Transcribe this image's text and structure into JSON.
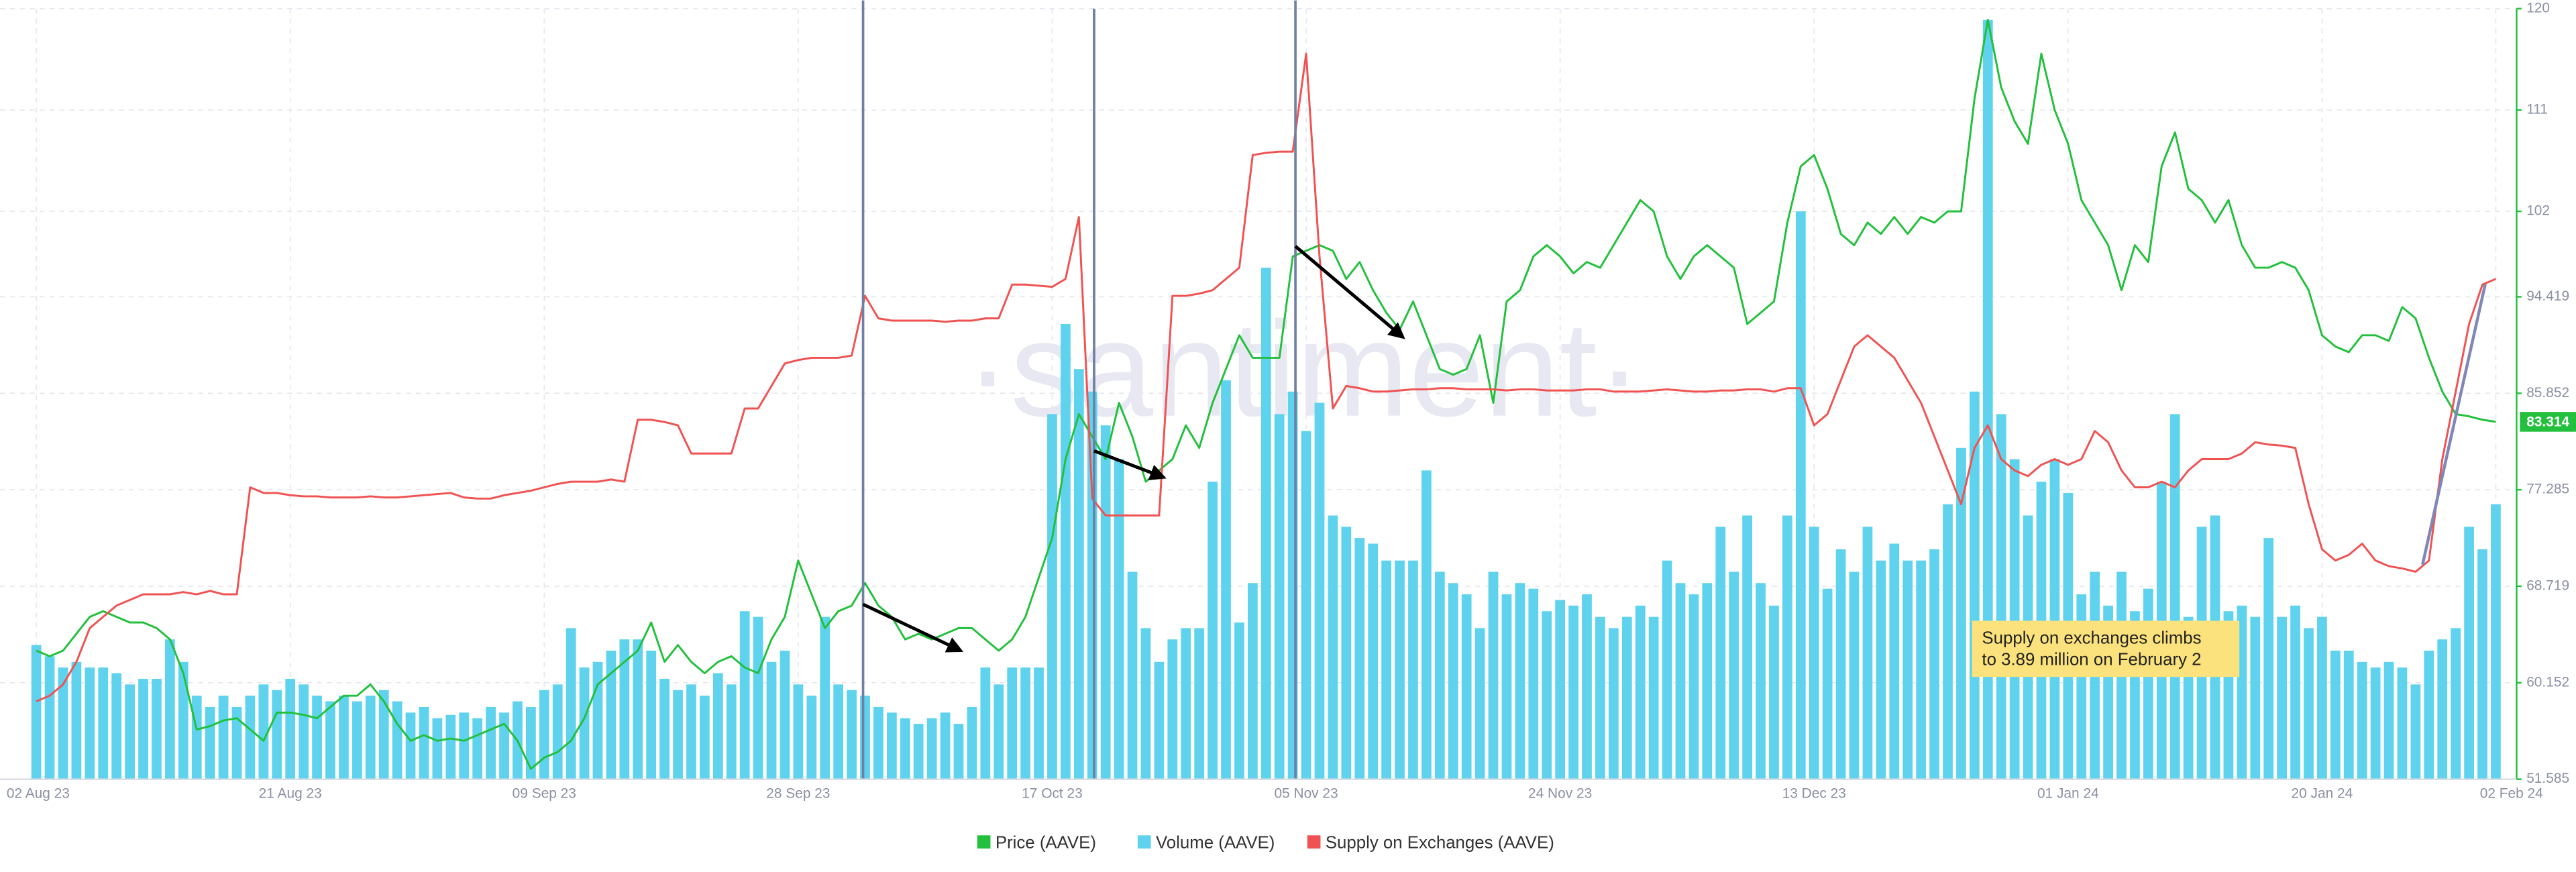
{
  "chart_data": {
    "type": "combo",
    "watermark": "·santiment·",
    "categories": [
      "02 Aug 23",
      null,
      null,
      null,
      null,
      null,
      null,
      null,
      null,
      null,
      null,
      null,
      null,
      null,
      null,
      null,
      null,
      null,
      null,
      "21 Aug 23",
      null,
      null,
      null,
      null,
      null,
      null,
      null,
      null,
      null,
      null,
      null,
      null,
      null,
      null,
      null,
      null,
      null,
      null,
      "09 Sep 23",
      null,
      null,
      null,
      null,
      null,
      null,
      null,
      null,
      null,
      null,
      null,
      null,
      null,
      null,
      null,
      null,
      null,
      null,
      "28 Sep 23",
      null,
      null,
      null,
      null,
      null,
      null,
      null,
      null,
      null,
      null,
      null,
      null,
      null,
      null,
      null,
      null,
      null,
      null,
      "17 Oct 23",
      null,
      null,
      null,
      null,
      null,
      null,
      null,
      null,
      null,
      null,
      null,
      null,
      null,
      null,
      null,
      null,
      null,
      null,
      "05 Nov 23",
      null,
      null,
      null,
      null,
      null,
      null,
      null,
      null,
      null,
      null,
      null,
      null,
      null,
      null,
      null,
      null,
      null,
      null,
      "24 Nov 23",
      null,
      null,
      null,
      null,
      null,
      null,
      null,
      null,
      null,
      null,
      null,
      null,
      null,
      null,
      null,
      null,
      null,
      null,
      "13 Dec 23",
      null,
      null,
      null,
      null,
      null,
      null,
      null,
      null,
      null,
      null,
      null,
      null,
      null,
      null,
      null,
      null,
      null,
      null,
      "01 Jan 24",
      null,
      null,
      null,
      null,
      null,
      null,
      null,
      null,
      null,
      null,
      null,
      null,
      null,
      null,
      null,
      null,
      null,
      null,
      "20 Jan 24",
      null,
      null,
      null,
      null,
      null,
      null,
      null,
      null,
      null,
      null,
      null,
      null,
      "02 Feb 24"
    ],
    "series": [
      {
        "name": "Price (AAVE)",
        "type": "line",
        "color": "#22c03c",
        "values": [
          63,
          62.5,
          63,
          64.5,
          66,
          66.5,
          66,
          65.5,
          65.5,
          65,
          64,
          61,
          56,
          56.3,
          56.8,
          57,
          56,
          55,
          57.5,
          57.5,
          57.3,
          57,
          58,
          59,
          59,
          60,
          58.5,
          56.5,
          55,
          55.5,
          55,
          55.2,
          55,
          55.5,
          56,
          56.5,
          55,
          52.5,
          53.5,
          54,
          55,
          57,
          60,
          61,
          62,
          63,
          65.5,
          62,
          63.5,
          62,
          61,
          62,
          62.5,
          61.5,
          61,
          64,
          66,
          71,
          68,
          65,
          66.5,
          67,
          69,
          67,
          66,
          64,
          64.5,
          64,
          64.5,
          65,
          65,
          64,
          63,
          64,
          66,
          69.5,
          73,
          80,
          84,
          82,
          80,
          85,
          82,
          78,
          79,
          80,
          83,
          81,
          85,
          88,
          91,
          89,
          89,
          89,
          98,
          98.5,
          99,
          98.5,
          96,
          97.5,
          95,
          93,
          91.5,
          94,
          91,
          88,
          87.5,
          88,
          91,
          85,
          94,
          95,
          98,
          99,
          98,
          96.5,
          97.5,
          97,
          99,
          101,
          103,
          102,
          98,
          96,
          98,
          99,
          98,
          97,
          92,
          93,
          94,
          101,
          106,
          107,
          104,
          100,
          99,
          101,
          100,
          101.5,
          100,
          101.5,
          101,
          102,
          102,
          112,
          119,
          113,
          110,
          108,
          116,
          111,
          108,
          103,
          101,
          99,
          95,
          99,
          97.5,
          106,
          109,
          104,
          103,
          101,
          103,
          99,
          97,
          97,
          97.5,
          97,
          95,
          91,
          90,
          89.5,
          91,
          91,
          90.5,
          93.5,
          92.5,
          89,
          86,
          84,
          83.8,
          83.5,
          83.314
        ]
      },
      {
        "name": "Volume (AAVE)",
        "type": "bar",
        "color": "#5fd3ee",
        "values": [
          63.5,
          62.5,
          61.5,
          62,
          61.5,
          61.5,
          61,
          60,
          60.5,
          60.5,
          64,
          62,
          59,
          58,
          59,
          58,
          59,
          60,
          59.5,
          60.5,
          60,
          59,
          58.5,
          59,
          58.5,
          59,
          59.5,
          58.5,
          57.5,
          58,
          57,
          57.3,
          57.5,
          57,
          58,
          57.5,
          58.5,
          58,
          59.5,
          60,
          65,
          61.5,
          62,
          63,
          64,
          64,
          63,
          60.5,
          59.5,
          60,
          59,
          61,
          60,
          66.5,
          66,
          62,
          63,
          60,
          59,
          66,
          60,
          59.5,
          59,
          58,
          57.5,
          57,
          56.5,
          57,
          57.5,
          56.5,
          58,
          61.5,
          60,
          61.5,
          61.5,
          61.5,
          84,
          92,
          88,
          86,
          83,
          80,
          70,
          65,
          62,
          64,
          65,
          65,
          78,
          87,
          65.5,
          69,
          97,
          84,
          86,
          82.5,
          85,
          75,
          74,
          73,
          72.5,
          71,
          71,
          71,
          79,
          70,
          69,
          68,
          65,
          70,
          68,
          69,
          68.5,
          66.5,
          67.5,
          67,
          68,
          66,
          65,
          66,
          67,
          66,
          71,
          69,
          68,
          69,
          74,
          70,
          75,
          69,
          67,
          75,
          102,
          74,
          68.5,
          72,
          70,
          74,
          71,
          72.5,
          71,
          71,
          72,
          76,
          81,
          86,
          119,
          84,
          80,
          75,
          78,
          80,
          77,
          68,
          70,
          67,
          70,
          66.5,
          68.5,
          78,
          84,
          66,
          74,
          75,
          66.5,
          67,
          66,
          73,
          66,
          67,
          65,
          66,
          63,
          63,
          62,
          61.5,
          62,
          61.5,
          60,
          63,
          64,
          65,
          74,
          72,
          76
        ]
      },
      {
        "name": "Supply on Exchanges (AAVE)",
        "type": "line",
        "color": "#f05252",
        "values": [
          58.5,
          59,
          60,
          62,
          65,
          66,
          67,
          67.5,
          68,
          68,
          68,
          68.2,
          68,
          68.3,
          68,
          68,
          77.5,
          77,
          77,
          76.8,
          76.7,
          76.7,
          76.6,
          76.6,
          76.6,
          76.7,
          76.6,
          76.6,
          76.7,
          76.8,
          76.9,
          77,
          76.6,
          76.5,
          76.5,
          76.8,
          77,
          77.2,
          77.5,
          77.8,
          78,
          78,
          78,
          78.2,
          78,
          83.5,
          83.5,
          83.3,
          83,
          80.5,
          80.5,
          80.5,
          80.5,
          84.5,
          84.5,
          86.5,
          88.5,
          88.8,
          89,
          89,
          89,
          89.2,
          94.5,
          92.5,
          92.3,
          92.3,
          92.3,
          92.3,
          92.2,
          92.3,
          92.3,
          92.5,
          92.5,
          95.5,
          95.5,
          95.4,
          95.3,
          96,
          101.5,
          76.5,
          75,
          75,
          75,
          75,
          75,
          94.5,
          94.5,
          94.7,
          95,
          96,
          97,
          107,
          107.2,
          107.3,
          107.3,
          116,
          98,
          84.5,
          86.5,
          86.3,
          86,
          86,
          86.1,
          86.2,
          86.2,
          86.3,
          86.3,
          86.2,
          86.2,
          86.2,
          86.1,
          86.2,
          86.2,
          86.1,
          86.1,
          86.1,
          86.2,
          86.2,
          86,
          86,
          86,
          86.1,
          86.2,
          86.1,
          86,
          86,
          86.1,
          86.1,
          86.2,
          86.2,
          86,
          86.3,
          86.3,
          83,
          84,
          87,
          90,
          91,
          90,
          89,
          87,
          85,
          82,
          79,
          76,
          81,
          83,
          80,
          79,
          78.5,
          79.5,
          80,
          79.5,
          80,
          82.5,
          81.5,
          79,
          77.5,
          77.5,
          78,
          77.5,
          79,
          80,
          80,
          80,
          80.5,
          81.5,
          81.3,
          81.2,
          81,
          76,
          72,
          71,
          71.5,
          72.5,
          71,
          70.5,
          70.3,
          70,
          71,
          80,
          86,
          92,
          95.5,
          96
        ]
      }
    ],
    "ylim": [
      51.585,
      120
    ],
    "yticks": [
      51.585,
      60.152,
      68.719,
      77.285,
      85.852,
      94.419,
      102,
      111,
      120
    ],
    "grid": true,
    "annotation": [
      "Supply on exchanges climbs",
      "to 3.89 million on February 2"
    ]
  }
}
